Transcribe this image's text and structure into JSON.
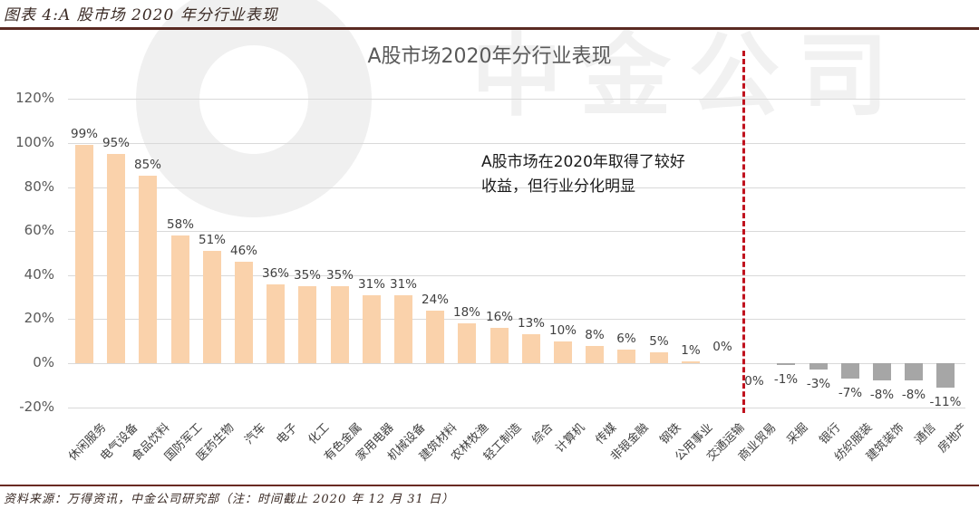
{
  "figure": {
    "caption": "图表 4:A 股市场 2020 年分行业表现",
    "source": "资料来源：万得资讯，中金公司研究部（注：时间截止 2020 年 12 月 31 日）",
    "watermark": "中金公司"
  },
  "annotation": {
    "line1": "A股市场在2020年取得了较好",
    "line2": "收益，但行业分化明显"
  },
  "colors": {
    "positive_bar": "#fad2ab",
    "negative_bar": "#a6a6a6",
    "divider": "#c0121e",
    "caption_rule": "#5a2a22"
  },
  "chart_data": {
    "type": "bar",
    "title": "A股市场2020年分行业表现",
    "xlabel": "",
    "ylabel": "",
    "ylim": [
      -0.2,
      1.2
    ],
    "yticks": [
      "120%",
      "100%",
      "80%",
      "60%",
      "40%",
      "20%",
      "0%",
      "-20%"
    ],
    "grid": true,
    "legend": null,
    "categories": [
      "休闲服务",
      "电气设备",
      "食品饮料",
      "国防军工",
      "医药生物",
      "汽车",
      "电子",
      "化工",
      "有色金属",
      "家用电器",
      "机械设备",
      "建筑材料",
      "农林牧渔",
      "轻工制造",
      "综合",
      "计算机",
      "传媒",
      "非银金融",
      "钢铁",
      "公用事业",
      "交通运输",
      "商业贸易",
      "采掘",
      "银行",
      "纺织服装",
      "建筑装饰",
      "通信",
      "房地产"
    ],
    "values": [
      99,
      95,
      85,
      58,
      51,
      46,
      36,
      35,
      35,
      31,
      31,
      24,
      18,
      16,
      13,
      10,
      8,
      6,
      5,
      1,
      0,
      0,
      -1,
      -3,
      -7,
      -8,
      -8,
      -11
    ],
    "value_labels": [
      "99%",
      "95%",
      "85%",
      "58%",
      "51%",
      "46%",
      "36%",
      "35%",
      "35%",
      "31%",
      "31%",
      "24%",
      "18%",
      "16%",
      "13%",
      "10%",
      "8%",
      "6%",
      "5%",
      "1%",
      "0%",
      "0%",
      "-1%",
      "-3%",
      "-7%",
      "-8%",
      "-8%",
      "-11%"
    ],
    "units": "%",
    "annotations": [
      "A股市场在2020年取得了较好收益，但行业分化明显",
      "vertical red dashed divider between 交通运输 and 商业贸易"
    ]
  }
}
